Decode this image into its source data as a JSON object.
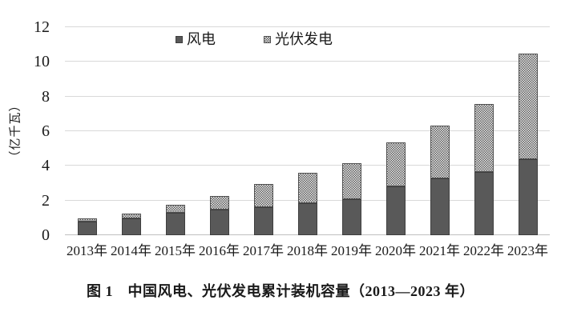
{
  "figure": {
    "caption": "图 1　中国风电、光伏发电累计装机容量（2013—2023 年）"
  },
  "chart_data": {
    "type": "bar",
    "stacked": true,
    "title": "",
    "categories": [
      "2013年",
      "2014年",
      "2015年",
      "2016年",
      "2017年",
      "2018年",
      "2019年",
      "2020年",
      "2021年",
      "2022年",
      "2023年"
    ],
    "series": [
      {
        "name": "风电",
        "values": [
          0.77,
          0.96,
          1.31,
          1.49,
          1.64,
          1.84,
          2.1,
          2.82,
          3.28,
          3.65,
          4.41
        ],
        "color": "#595959",
        "pattern": "solid"
      },
      {
        "name": "光伏发电",
        "values": [
          0.19,
          0.28,
          0.43,
          0.77,
          1.3,
          1.74,
          2.04,
          2.53,
          3.06,
          3.93,
          6.09
        ],
        "color": "#ededed",
        "pattern": "checker-dots"
      }
    ],
    "xlabel": "",
    "ylabel": "（亿千瓦）",
    "ylim": [
      0,
      12
    ],
    "yticks": [
      0,
      2,
      4,
      6,
      8,
      10,
      12
    ],
    "grid": "horizontal",
    "legend_position": "top-inside",
    "colors": {
      "wind_fill": "#595959",
      "wind_border": "#3f3f3f",
      "pv_dot": "#5c5c5c",
      "pv_background": "#ededed",
      "gridline": "#d9d9d9",
      "baseline": "#bfbfbf",
      "text": "#1a1a1a"
    }
  }
}
